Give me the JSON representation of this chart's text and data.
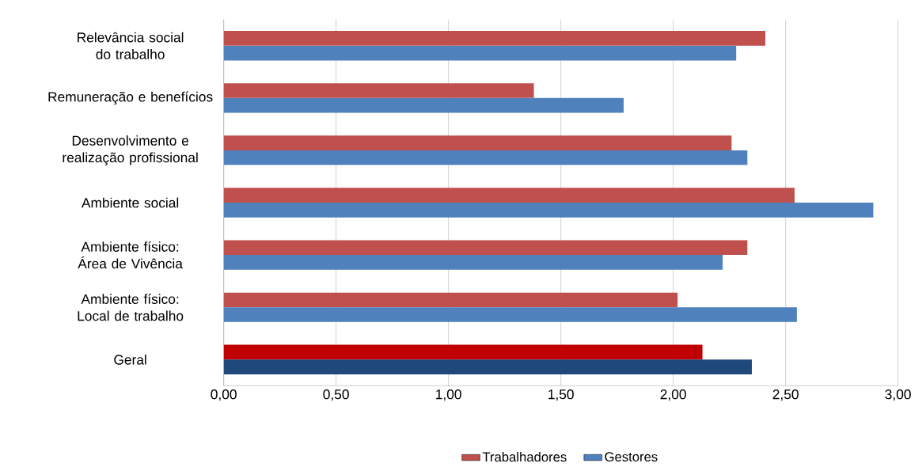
{
  "chart_data": {
    "type": "bar",
    "orientation": "horizontal",
    "categories": [
      "Relevância social do trabalho",
      "Remuneração e benefícios",
      "Desenvolvimento e realização profissional",
      "Ambiente social",
      "Ambiente físico: Área de Vivência",
      "Ambiente físico: Local de trabalho",
      "Geral"
    ],
    "series": [
      {
        "name": "Trabalhadores",
        "color": "#c0504d",
        "colors": [
          "#c0504d",
          "#c0504d",
          "#c0504d",
          "#c0504d",
          "#c0504d",
          "#c0504d",
          "#c00000"
        ],
        "values": [
          2.41,
          1.38,
          2.26,
          2.54,
          2.33,
          2.02,
          2.13
        ]
      },
      {
        "name": "Gestores",
        "color": "#4f81bd",
        "colors": [
          "#4f81bd",
          "#4f81bd",
          "#4f81bd",
          "#4f81bd",
          "#4f81bd",
          "#4f81bd",
          "#1f497d"
        ],
        "values": [
          2.28,
          1.78,
          2.33,
          2.89,
          2.22,
          2.55,
          2.35
        ]
      }
    ],
    "xlim": [
      0,
      3
    ],
    "xticks": [
      {
        "value": 0,
        "label": "0,00"
      },
      {
        "value": 0.5,
        "label": "0,50"
      },
      {
        "value": 1,
        "label": "1,00"
      },
      {
        "value": 1.5,
        "label": "1,50"
      },
      {
        "value": 2,
        "label": "2,00"
      },
      {
        "value": 2.5,
        "label": "2,50"
      },
      {
        "value": 3,
        "label": "3,00"
      }
    ],
    "grid": "x",
    "legend": "bottom"
  }
}
